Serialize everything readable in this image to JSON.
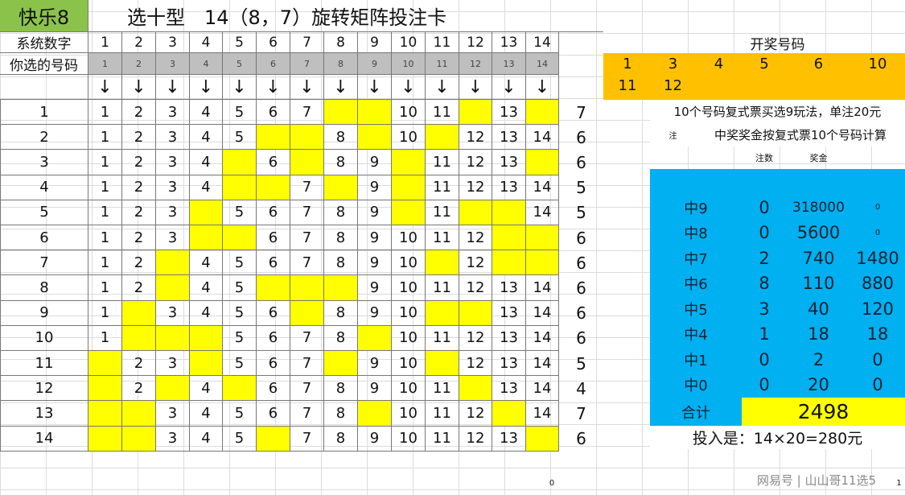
{
  "brand": "快乐8",
  "title": "选十型　14（8，7）旋转矩阵投注卡",
  "header": {
    "system_label": "系统数字",
    "chosen_label": "你选的号码",
    "system_numbers": [
      "1",
      "2",
      "3",
      "4",
      "5",
      "6",
      "7",
      "8",
      "9",
      "10",
      "11",
      "12",
      "13",
      "14"
    ],
    "chosen_numbers": [
      "1",
      "2",
      "3",
      "4",
      "5",
      "6",
      "7",
      "8",
      "9",
      "10",
      "11",
      "12",
      "13",
      "14"
    ],
    "arrow": "↓"
  },
  "matrix": [
    {
      "row": "1",
      "cells": [
        "1",
        "2",
        "3",
        "4",
        "5",
        "6",
        "7",
        "",
        "",
        "10",
        "11",
        "",
        "13",
        ""
      ],
      "hits": "7"
    },
    {
      "row": "2",
      "cells": [
        "1",
        "2",
        "3",
        "4",
        "5",
        "",
        "",
        "8",
        "",
        "10",
        "",
        "12",
        "13",
        "14"
      ],
      "hits": "6"
    },
    {
      "row": "3",
      "cells": [
        "1",
        "2",
        "3",
        "4",
        "",
        "6",
        "",
        "8",
        "9",
        "",
        "11",
        "12",
        "13",
        ""
      ],
      "hits": "6"
    },
    {
      "row": "4",
      "cells": [
        "1",
        "2",
        "3",
        "4",
        "",
        "",
        "7",
        "",
        "9",
        "",
        "11",
        "12",
        "13",
        "14"
      ],
      "hits": "5"
    },
    {
      "row": "5",
      "cells": [
        "1",
        "2",
        "3",
        "",
        "5",
        "6",
        "7",
        "8",
        "9",
        "",
        "11",
        "",
        "",
        "14"
      ],
      "hits": "5"
    },
    {
      "row": "6",
      "cells": [
        "1",
        "2",
        "3",
        "",
        "",
        "6",
        "7",
        "8",
        "9",
        "10",
        "11",
        "12",
        "",
        ""
      ],
      "hits": "6"
    },
    {
      "row": "7",
      "cells": [
        "1",
        "2",
        "",
        "4",
        "5",
        "6",
        "7",
        "8",
        "9",
        "10",
        "",
        "12",
        "",
        ""
      ],
      "hits": "6"
    },
    {
      "row": "8",
      "cells": [
        "1",
        "2",
        "",
        "4",
        "5",
        "",
        "",
        "",
        "9",
        "10",
        "11",
        "12",
        "13",
        "14"
      ],
      "hits": "6"
    },
    {
      "row": "9",
      "cells": [
        "1",
        "",
        "3",
        "4",
        "5",
        "6",
        "",
        "8",
        "9",
        "10",
        "",
        "",
        "13",
        "14"
      ],
      "hits": "6"
    },
    {
      "row": "10",
      "cells": [
        "1",
        "",
        "",
        "",
        "5",
        "6",
        "7",
        "8",
        "",
        "10",
        "11",
        "12",
        "13",
        "14"
      ],
      "hits": "6"
    },
    {
      "row": "11",
      "cells": [
        "",
        "2",
        "3",
        "",
        "5",
        "6",
        "7",
        "",
        "9",
        "10",
        "",
        "12",
        "13",
        "14"
      ],
      "hits": "5"
    },
    {
      "row": "12",
      "cells": [
        "",
        "2",
        "",
        "4",
        "",
        "6",
        "7",
        "8",
        "9",
        "10",
        "11",
        "",
        "13",
        "14"
      ],
      "hits": "4"
    },
    {
      "row": "13",
      "cells": [
        "",
        "",
        "3",
        "4",
        "5",
        "6",
        "7",
        "8",
        "",
        "10",
        "11",
        "12",
        "",
        "14"
      ],
      "hits": "7"
    },
    {
      "row": "14",
      "cells": [
        "",
        "",
        "3",
        "4",
        "5",
        "",
        "7",
        "8",
        "9",
        "10",
        "11",
        "12",
        "13",
        ""
      ],
      "hits": "6"
    }
  ],
  "draw": {
    "label": "开奖号码",
    "numbers": [
      "1",
      "3",
      "4",
      "5",
      "6",
      "10",
      "11",
      "12"
    ]
  },
  "notes": {
    "rule": "10个号码复式票买选9玩法，单注20元",
    "note_mark": "注",
    "note": "中奖奖金按复式票10个号码计算",
    "col_count": "注数",
    "col_prize": "奖金"
  },
  "prizes": [
    {
      "level": "中9",
      "count": "0",
      "prize": "318000",
      "total": "0"
    },
    {
      "level": "中8",
      "count": "0",
      "prize": "5600",
      "total": "0"
    },
    {
      "level": "中7",
      "count": "2",
      "prize": "740",
      "total": "1480"
    },
    {
      "level": "中6",
      "count": "8",
      "prize": "110",
      "total": "880"
    },
    {
      "level": "中5",
      "count": "3",
      "prize": "40",
      "total": "120"
    },
    {
      "level": "中4",
      "count": "1",
      "prize": "18",
      "total": "18"
    },
    {
      "level": "中1",
      "count": "0",
      "prize": "2",
      "total": "0"
    },
    {
      "level": "中0",
      "count": "0",
      "prize": "20",
      "total": "0"
    }
  ],
  "sum": {
    "label": "合计",
    "value": "2498"
  },
  "investment": "投入是：14×20=280元",
  "footer": {
    "left_value": "0",
    "watermark": "网易号 | 山山哥11选5",
    "page": "1"
  },
  "colors": {
    "brand_green": "#8bc34a",
    "yellow": "#ffff00",
    "orange": "#ffc000",
    "blue": "#00b0f0",
    "gray": "#bfbfbf"
  }
}
